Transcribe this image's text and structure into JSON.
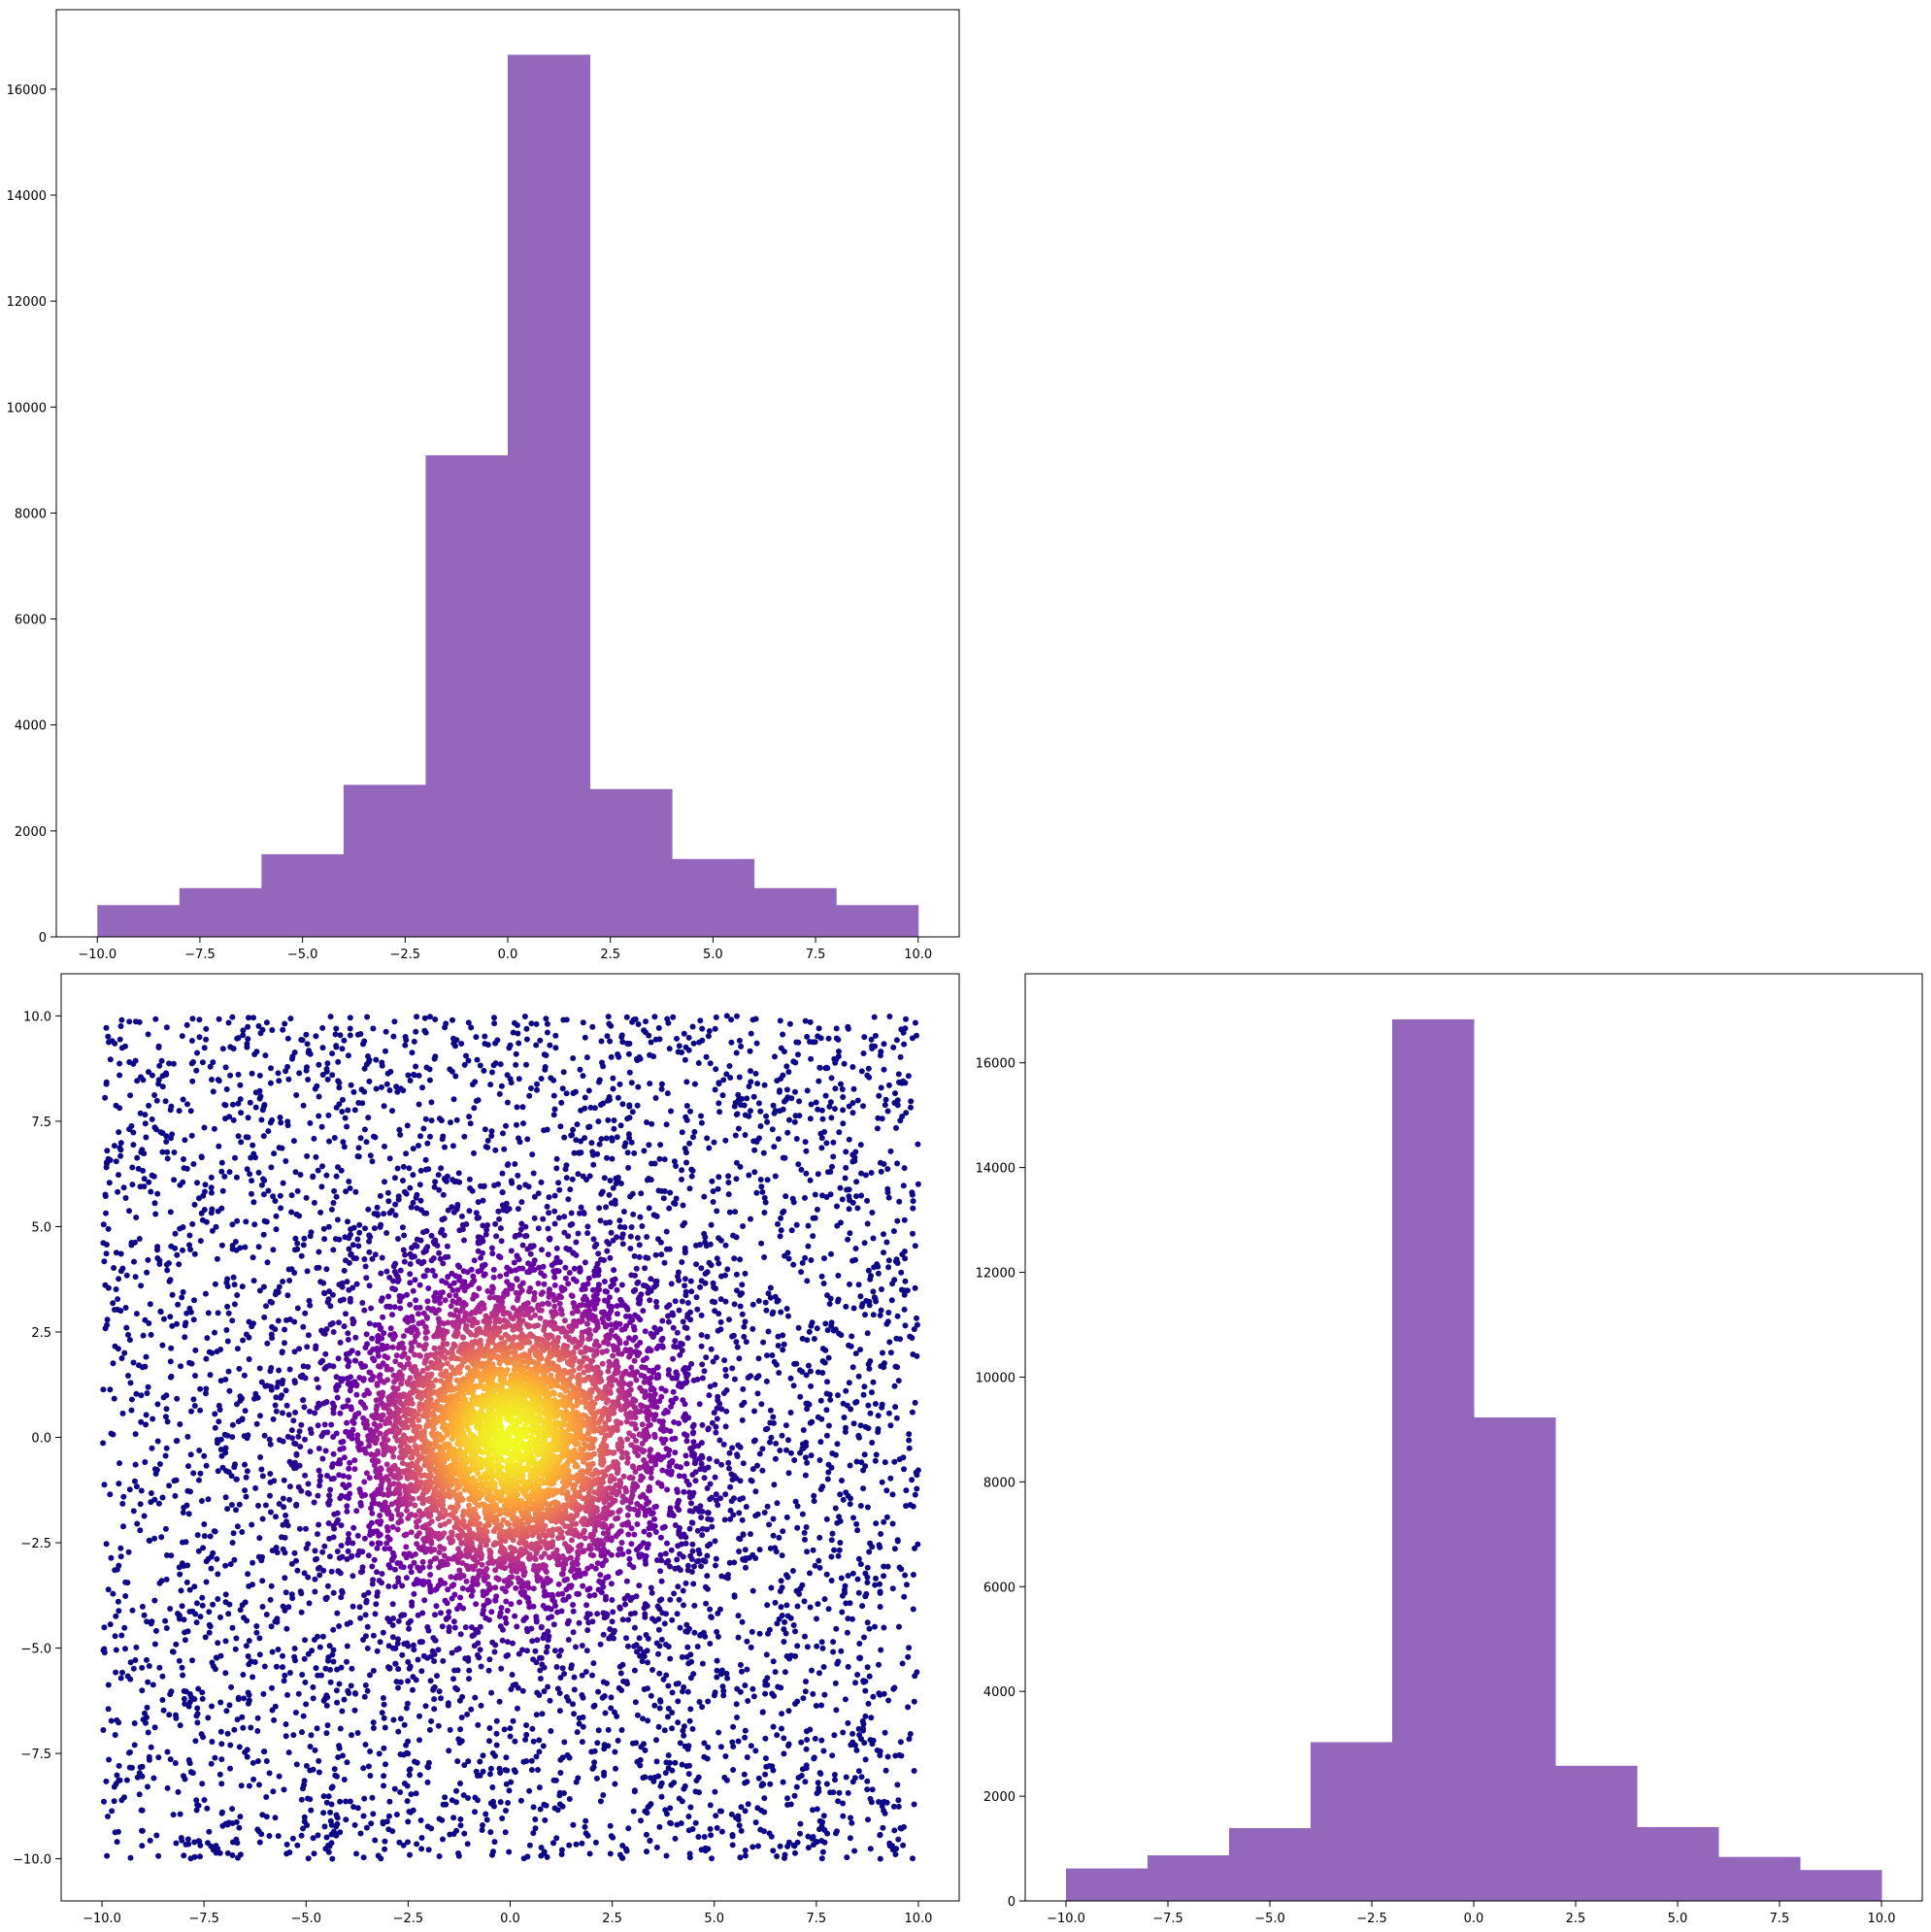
{
  "chart_data": [
    {
      "type": "bar",
      "kind": "histogram",
      "position": "top-left",
      "bin_edges": [
        -10,
        -8,
        -6,
        -4,
        -2,
        0,
        2,
        4,
        6,
        8,
        10
      ],
      "values": [
        600,
        920,
        1560,
        2870,
        9090,
        16650,
        2790,
        1470,
        920,
        600
      ],
      "bar_color": "#9467bd",
      "xlim": [
        -11,
        11
      ],
      "ylim": [
        0,
        17500
      ],
      "xticks": [
        -10.0,
        -7.5,
        -5.0,
        -2.5,
        0.0,
        2.5,
        5.0,
        7.5,
        10.0
      ],
      "xtick_labels": [
        "−10.0",
        "−7.5",
        "−5.0",
        "−2.5",
        "0.0",
        "2.5",
        "5.0",
        "7.5",
        "10.0"
      ],
      "yticks": [
        0,
        2000,
        4000,
        6000,
        8000,
        10000,
        12000,
        14000,
        16000
      ],
      "ytick_labels": [
        "0",
        "2000",
        "4000",
        "6000",
        "8000",
        "10000",
        "12000",
        "14000",
        "16000"
      ],
      "grid": false
    },
    {
      "type": "scatter",
      "position": "bottom-left",
      "point_count": 10000,
      "x_distribution": "mixture of uniform(-10,10) and normal(0,2)",
      "y_distribution": "mixture of uniform(-10,10) and normal(0,2)",
      "color_encoding": "point density (plasma colormap)",
      "colormap": [
        "#0d0887",
        "#6a00a8",
        "#b12a90",
        "#e16462",
        "#fca636",
        "#f0f921"
      ],
      "xlim": [
        -11,
        11
      ],
      "ylim": [
        -11,
        11
      ],
      "xticks": [
        -10.0,
        -7.5,
        -5.0,
        -2.5,
        0.0,
        2.5,
        5.0,
        7.5,
        10.0
      ],
      "xtick_labels": [
        "−10.0",
        "−7.5",
        "−5.0",
        "−2.5",
        "0.0",
        "2.5",
        "5.0",
        "7.5",
        "10.0"
      ],
      "yticks": [
        -10.0,
        -7.5,
        -5.0,
        -2.5,
        0.0,
        2.5,
        5.0,
        7.5,
        10.0
      ],
      "ytick_labels": [
        "−10.0",
        "−7.5",
        "−5.0",
        "−2.5",
        "0.0",
        "2.5",
        "5.0",
        "7.5",
        "10.0"
      ],
      "grid": false
    },
    {
      "type": "bar",
      "kind": "histogram",
      "position": "bottom-right",
      "bin_edges": [
        -10,
        -8,
        -6,
        -4,
        -2,
        0,
        2,
        4,
        6,
        8,
        10
      ],
      "values": [
        620,
        870,
        1390,
        3030,
        16830,
        9230,
        2580,
        1410,
        840,
        590
      ],
      "bar_color": "#9467bd",
      "xlim": [
        -11,
        11
      ],
      "ylim": [
        0,
        17700
      ],
      "xticks": [
        -10.0,
        -7.5,
        -5.0,
        -2.5,
        0.0,
        2.5,
        5.0,
        7.5,
        10.0
      ],
      "xtick_labels": [
        "−10.0",
        "−7.5",
        "−5.0",
        "−2.5",
        "0.0",
        "2.5",
        "5.0",
        "7.5",
        "10.0"
      ],
      "yticks": [
        0,
        2000,
        4000,
        6000,
        8000,
        10000,
        12000,
        14000,
        16000
      ],
      "ytick_labels": [
        "0",
        "2000",
        "4000",
        "6000",
        "8000",
        "10000",
        "12000",
        "14000",
        "16000"
      ],
      "grid": false
    }
  ]
}
